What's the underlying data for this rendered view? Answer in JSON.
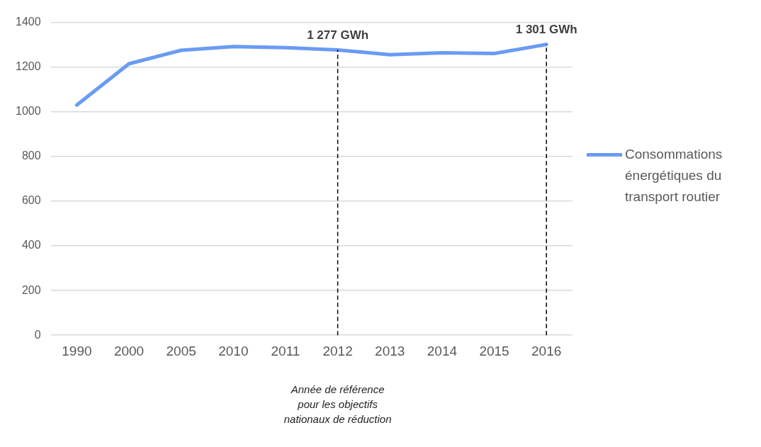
{
  "chart_data": {
    "type": "line",
    "categories": [
      "1990",
      "2000",
      "2005",
      "2010",
      "2011",
      "2012",
      "2013",
      "2014",
      "2015",
      "2016"
    ],
    "series": [
      {
        "name": "Consommations énergétiques du transport routier",
        "color": "#6a9bf4",
        "values": [
          1030,
          1215,
          1275,
          1292,
          1287,
          1277,
          1255,
          1264,
          1261,
          1301
        ]
      }
    ],
    "ylim": [
      0,
      1400
    ],
    "yticks": [
      0,
      200,
      400,
      600,
      800,
      1000,
      1200,
      1400
    ],
    "grid": "y",
    "legend": "right",
    "marker": "none",
    "line_style": "solid",
    "ref_lines": [
      {
        "axis": "x",
        "value": "2012",
        "color": "#000000",
        "line_style": "dashed"
      },
      {
        "axis": "x",
        "value": "2016",
        "color": "#000000",
        "line_style": "dashed"
      }
    ],
    "annotations": [
      {
        "text": "1 277 GWh",
        "x": "2012",
        "y": 1277
      },
      {
        "text": "1 301 GWh",
        "x": "2016",
        "y": 1301
      },
      "Année de référence pour les objectifs nationaux de réduction"
    ]
  }
}
